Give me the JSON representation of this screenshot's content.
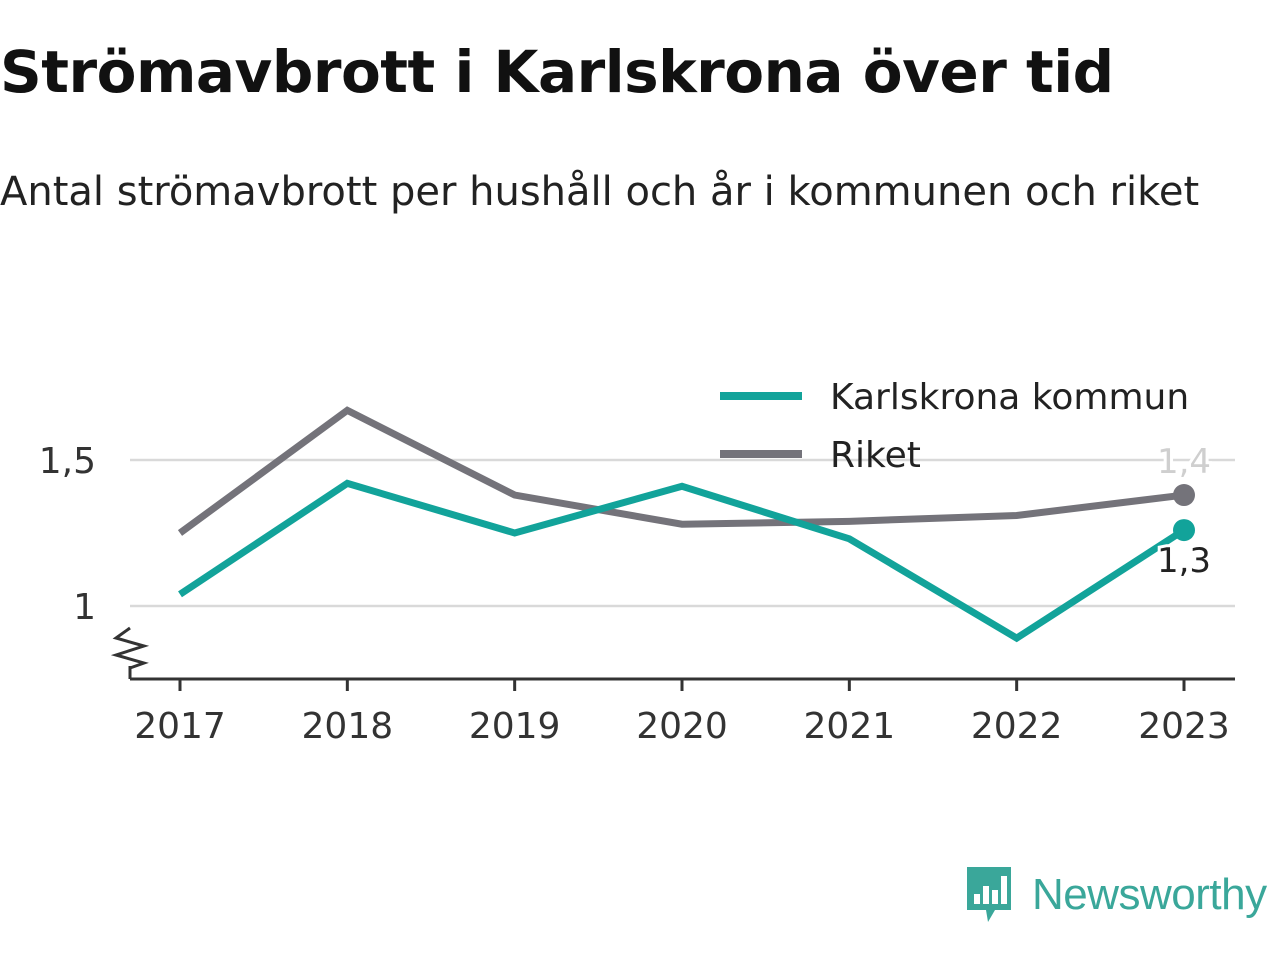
{
  "colors": {
    "karlskrona": "#12a39a",
    "riket": "#74737a",
    "grid": "#d9d9d9",
    "axis": "#333333",
    "brand": "#3aa79a"
  },
  "brand": {
    "name": "Newsworthy",
    "icon": "bar-chart-speech-bubble-icon"
  },
  "chart_data": {
    "type": "line",
    "title": "Strömavbrott i Karlskrona över tid",
    "subtitle": "Antal strömavbrott per hushåll och år i kommunen och riket",
    "x": [
      "2017",
      "2018",
      "2019",
      "2020",
      "2021",
      "2022",
      "2023"
    ],
    "y_ticks": [
      1,
      1.5
    ],
    "y_tick_labels": [
      "1",
      "1,5"
    ],
    "ylim": [
      0.76,
      1.68
    ],
    "y_axis_break": true,
    "grid": true,
    "legend_position": "top-right",
    "series": [
      {
        "name": "Karlskrona kommun",
        "color_key": "karlskrona",
        "values": [
          1.04,
          1.42,
          1.25,
          1.41,
          1.23,
          0.89,
          1.26
        ],
        "end_label": "1,3"
      },
      {
        "name": "Riket",
        "color_key": "riket",
        "values": [
          1.25,
          1.67,
          1.38,
          1.28,
          1.29,
          1.31,
          1.38
        ],
        "end_label": "1,4"
      }
    ]
  }
}
